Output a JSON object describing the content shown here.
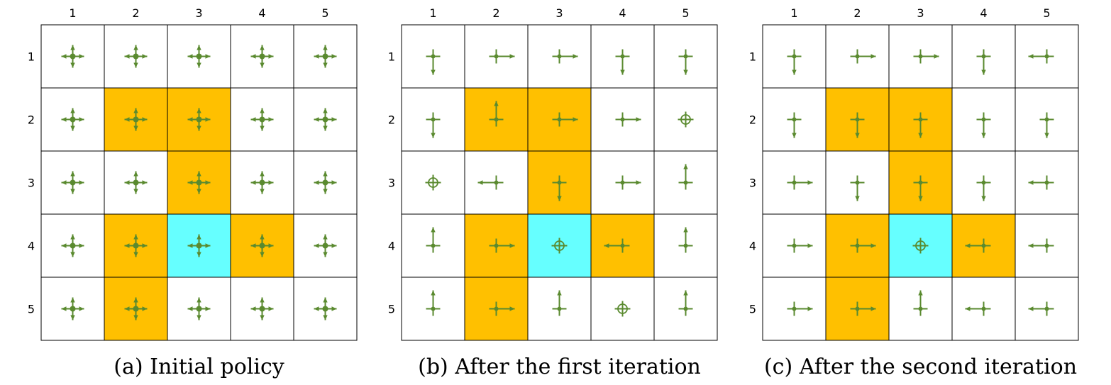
{
  "legend": {
    "stay": "circle with dot",
    "arrow": "arrowhead line"
  },
  "colors": {
    "forbidden": "#ffc000",
    "target": "#66ffff",
    "normal": "#ffffff",
    "grid": "#000000",
    "arrow": "#5a8a2f",
    "dot": "#5a8a2f"
  },
  "panels": [
    {
      "caption": "(a) Initial policy",
      "col_labels": [
        "1",
        "2",
        "3",
        "4",
        "5"
      ],
      "row_labels": [
        "1",
        "2",
        "3",
        "4",
        "5"
      ],
      "cell_types": [
        [
          "normal",
          "normal",
          "normal",
          "normal",
          "normal"
        ],
        [
          "normal",
          "forbidden",
          "forbidden",
          "normal",
          "normal"
        ],
        [
          "normal",
          "normal",
          "forbidden",
          "normal",
          "normal"
        ],
        [
          "normal",
          "forbidden",
          "target",
          "forbidden",
          "normal"
        ],
        [
          "normal",
          "forbidden",
          "normal",
          "normal",
          "normal"
        ]
      ],
      "policy": [
        [
          "all",
          "all",
          "all",
          "all",
          "all"
        ],
        [
          "all",
          "all",
          "all",
          "all",
          "all"
        ],
        [
          "all",
          "all",
          "all",
          "all",
          "all"
        ],
        [
          "all",
          "all",
          "all",
          "all",
          "all"
        ],
        [
          "all",
          "all",
          "all",
          "all",
          "all"
        ]
      ]
    },
    {
      "caption": "(b) After the first iteration",
      "col_labels": [
        "1",
        "2",
        "3",
        "4",
        "5"
      ],
      "row_labels": [
        "1",
        "2",
        "3",
        "4",
        "5"
      ],
      "cell_types": [
        [
          "normal",
          "normal",
          "normal",
          "normal",
          "normal"
        ],
        [
          "normal",
          "forbidden",
          "forbidden",
          "normal",
          "normal"
        ],
        [
          "normal",
          "normal",
          "forbidden",
          "normal",
          "normal"
        ],
        [
          "normal",
          "forbidden",
          "target",
          "forbidden",
          "normal"
        ],
        [
          "normal",
          "forbidden",
          "normal",
          "normal",
          "normal"
        ]
      ],
      "policy": [
        [
          "down",
          "right",
          "right",
          "down",
          "down"
        ],
        [
          "down",
          "up",
          "right",
          "right",
          "stay"
        ],
        [
          "stay",
          "left",
          "down",
          "right",
          "up"
        ],
        [
          "up",
          "right",
          "stay",
          "left",
          "up"
        ],
        [
          "up",
          "right",
          "up",
          "stay",
          "up"
        ]
      ]
    },
    {
      "caption": "(c) After the second iteration",
      "col_labels": [
        "1",
        "2",
        "3",
        "4",
        "5"
      ],
      "row_labels": [
        "1",
        "2",
        "3",
        "4",
        "5"
      ],
      "cell_types": [
        [
          "normal",
          "normal",
          "normal",
          "normal",
          "normal"
        ],
        [
          "normal",
          "forbidden",
          "forbidden",
          "normal",
          "normal"
        ],
        [
          "normal",
          "normal",
          "forbidden",
          "normal",
          "normal"
        ],
        [
          "normal",
          "forbidden",
          "target",
          "forbidden",
          "normal"
        ],
        [
          "normal",
          "forbidden",
          "normal",
          "normal",
          "normal"
        ]
      ],
      "policy": [
        [
          "down",
          "right",
          "right",
          "down",
          "left"
        ],
        [
          "down",
          "down",
          "down",
          "down",
          "down"
        ],
        [
          "right",
          "down",
          "down",
          "down",
          "left"
        ],
        [
          "right",
          "right",
          "stay",
          "left",
          "left"
        ],
        [
          "right",
          "right",
          "up",
          "left",
          "left"
        ]
      ]
    }
  ]
}
